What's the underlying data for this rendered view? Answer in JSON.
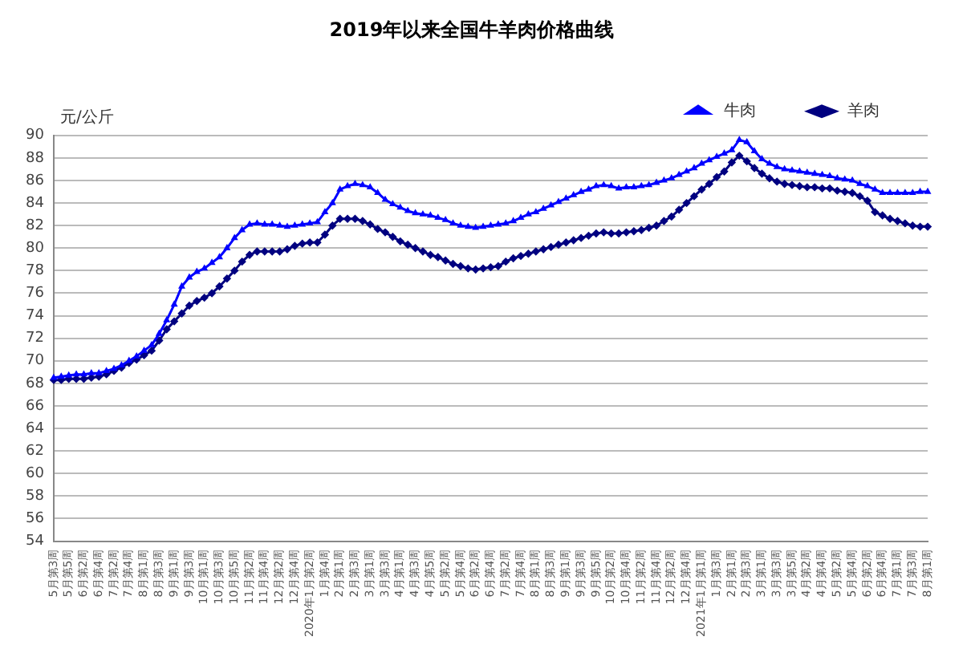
{
  "chart_data": {
    "type": "line",
    "title": "2019年以来全国牛羊肉价格曲线",
    "ylabel": "元/公斤",
    "categories": [
      "5月第3周",
      null,
      "5月第5周",
      null,
      "6月第2周",
      null,
      "6月第4周",
      null,
      "7月第2周",
      null,
      "7月第4周",
      null,
      "8月第1周",
      null,
      "8月第3周",
      null,
      "9月第1周",
      null,
      "9月第3周",
      null,
      "10月第1周",
      null,
      "10月第3周",
      null,
      "10月第5周",
      null,
      "11月第2周",
      null,
      "11月第4周",
      null,
      "12月第2周",
      null,
      "12月第4周",
      null,
      "2020年1月第2周",
      null,
      "1月第4周",
      null,
      "2月第1周",
      null,
      "2月第3周",
      null,
      "3月第1周",
      null,
      "3月第3周",
      null,
      "4月第1周",
      null,
      "4月第3周",
      null,
      "4月第5周",
      null,
      "5月第2周",
      null,
      "5月第4周",
      null,
      "6月第2周",
      null,
      "6月第4周",
      null,
      "7月第2周",
      null,
      "7月第4周",
      null,
      "8月第1周",
      null,
      "8月第3周",
      null,
      "9月第1周",
      null,
      "9月第3周",
      null,
      "9月第5周",
      null,
      "10月第2周",
      null,
      "10月第4周",
      null,
      "11月第2周",
      null,
      "11月第4周",
      null,
      "12月第2周",
      null,
      "12月第4周",
      null,
      "2021年1月第1周",
      null,
      "1月第3周",
      null,
      "2月第1周",
      null,
      "2月第3周",
      null,
      "3月第1周",
      null,
      "3月第3周",
      null,
      "3月第5周",
      null,
      "4月第2周",
      null,
      "4月第4周",
      null,
      "5月第2周",
      null,
      "5月第4周",
      null,
      "6月第2周",
      null,
      "6月第4周",
      null,
      "7月第1周",
      null,
      "7月第3周",
      null,
      "8月第1周"
    ],
    "series": [
      {
        "name": "牛肉",
        "color": "#0000ff",
        "marker": "triangle",
        "values": [
          68.5,
          68.6,
          68.7,
          68.8,
          68.8,
          68.9,
          68.9,
          69.1,
          69.3,
          69.6,
          70.0,
          70.4,
          70.9,
          71.4,
          72.4,
          73.6,
          75.0,
          76.6,
          77.4,
          77.9,
          78.2,
          78.7,
          79.2,
          80.0,
          80.9,
          81.6,
          82.1,
          82.2,
          82.1,
          82.1,
          82.0,
          81.9,
          82.0,
          82.1,
          82.2,
          82.3,
          83.2,
          84.0,
          85.2,
          85.5,
          85.7,
          85.6,
          85.4,
          84.9,
          84.3,
          83.9,
          83.6,
          83.3,
          83.1,
          83.0,
          82.9,
          82.7,
          82.5,
          82.2,
          82.0,
          81.9,
          81.8,
          81.9,
          82.0,
          82.1,
          82.2,
          82.4,
          82.7,
          83.0,
          83.2,
          83.5,
          83.8,
          84.1,
          84.4,
          84.7,
          85.0,
          85.2,
          85.5,
          85.6,
          85.5,
          85.3,
          85.4,
          85.4,
          85.5,
          85.6,
          85.8,
          86.0,
          86.2,
          86.5,
          86.8,
          87.1,
          87.5,
          87.8,
          88.1,
          88.4,
          88.7,
          89.6,
          89.4,
          88.6,
          87.9,
          87.5,
          87.2,
          87.0,
          86.9,
          86.8,
          86.7,
          86.6,
          86.5,
          86.4,
          86.2,
          86.1,
          86.0,
          85.7,
          85.5,
          85.2,
          84.9,
          84.9,
          84.9,
          84.9,
          84.9,
          85.0,
          85.0
        ]
      },
      {
        "name": "羊肉",
        "color": "#000080",
        "marker": "diamond",
        "values": [
          68.3,
          68.3,
          68.4,
          68.4,
          68.4,
          68.5,
          68.6,
          68.8,
          69.1,
          69.4,
          69.8,
          70.1,
          70.5,
          70.9,
          71.8,
          72.8,
          73.5,
          74.2,
          74.9,
          75.3,
          75.6,
          76.0,
          76.6,
          77.3,
          78.0,
          78.8,
          79.4,
          79.7,
          79.7,
          79.7,
          79.7,
          79.9,
          80.2,
          80.4,
          80.5,
          80.5,
          81.2,
          82.0,
          82.6,
          82.6,
          82.6,
          82.4,
          82.1,
          81.7,
          81.4,
          81.0,
          80.6,
          80.3,
          80.0,
          79.7,
          79.4,
          79.2,
          78.9,
          78.6,
          78.4,
          78.2,
          78.1,
          78.2,
          78.3,
          78.4,
          78.8,
          79.1,
          79.3,
          79.5,
          79.7,
          79.9,
          80.1,
          80.3,
          80.5,
          80.7,
          80.9,
          81.1,
          81.3,
          81.4,
          81.3,
          81.3,
          81.4,
          81.5,
          81.6,
          81.8,
          82.0,
          82.4,
          82.8,
          83.4,
          84.0,
          84.6,
          85.2,
          85.7,
          86.3,
          86.8,
          87.6,
          88.2,
          87.7,
          87.1,
          86.6,
          86.2,
          85.9,
          85.7,
          85.6,
          85.5,
          85.4,
          85.4,
          85.3,
          85.3,
          85.1,
          85.0,
          84.9,
          84.6,
          84.2,
          83.2,
          82.9,
          82.6,
          82.4,
          82.2,
          82.0,
          81.9,
          81.9
        ]
      }
    ],
    "ylim": [
      54,
      90
    ],
    "yticks": [
      54,
      56,
      58,
      60,
      62,
      64,
      66,
      68,
      70,
      72,
      74,
      76,
      78,
      80,
      82,
      84,
      86,
      88,
      90
    ],
    "grid": "y",
    "legend": "top right",
    "line_style": "solid"
  }
}
